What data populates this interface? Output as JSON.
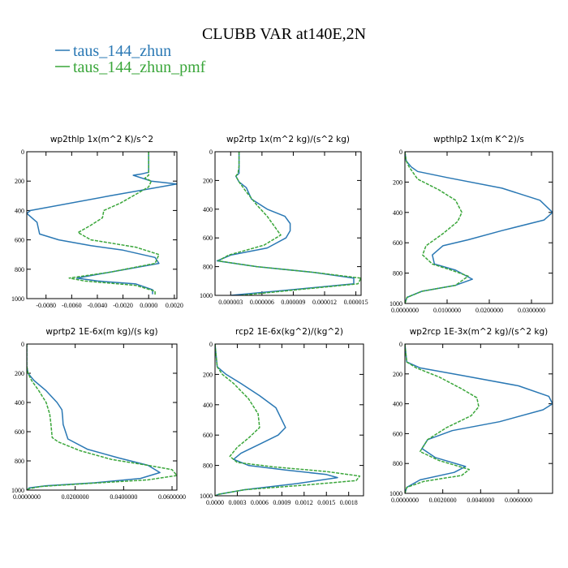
{
  "title": "CLUBB VAR at140E,2N",
  "legend": [
    {
      "label": "taus_144_zhun",
      "color": "#2a78b4"
    },
    {
      "label": "taus_144_zhun_pmf",
      "color": "#3aa63a"
    }
  ],
  "chart_data": [
    {
      "type": "line",
      "title": "wp2thlp   1x(m^2 K)/s^2",
      "ylim": [
        1000,
        0
      ],
      "xlim": [
        -0.0095,
        0.0022
      ],
      "yticks": [
        {
          "v": 0,
          "label": "0"
        },
        {
          "v": 200,
          "label": "200"
        },
        {
          "v": 400,
          "label": "400"
        },
        {
          "v": 600,
          "label": "600"
        },
        {
          "v": 800,
          "label": "800"
        },
        {
          "v": 1000,
          "label": "1000"
        }
      ],
      "xticks": [
        {
          "v": -0.008,
          "label": "-0.0080"
        },
        {
          "v": -0.006,
          "label": "-0.0060"
        },
        {
          "v": -0.004,
          "label": "-0.0040"
        },
        {
          "v": -0.002,
          "label": "-0.0020"
        },
        {
          "v": 0,
          "label": "0.0000"
        },
        {
          "v": 0.002,
          "label": "0.0020"
        }
      ],
      "series": [
        {
          "color": "#2a78b4",
          "dashed": false,
          "x": [
            0,
            0,
            0,
            -0.0005,
            -0.0012,
            0.0002,
            0.0022,
            -0.003,
            -0.0092,
            -0.0095,
            -0.0087,
            -0.0085,
            -0.007,
            -0.0045,
            -0.002,
            0.0005,
            0.0008,
            -0.003,
            -0.0056,
            -0.004,
            -0.001,
            0.0003,
            0.0003
          ],
          "y": [
            0,
            80,
            140,
            150,
            160,
            200,
            220,
            300,
            400,
            420,
            480,
            560,
            600,
            640,
            670,
            720,
            760,
            820,
            860,
            880,
            900,
            940,
            970
          ]
        },
        {
          "color": "#3aa63a",
          "dashed": true,
          "x": [
            0,
            0,
            0,
            0,
            -0.0003,
            0.0002,
            0.0,
            -0.0012,
            -0.0022,
            -0.0035,
            -0.0036,
            -0.0045,
            -0.0055,
            -0.0045,
            -0.001,
            0.0008,
            0.0005,
            -0.003,
            -0.0062,
            -0.005,
            -0.001,
            0.0005,
            0.0005
          ],
          "y": [
            0,
            60,
            120,
            160,
            180,
            200,
            240,
            300,
            350,
            400,
            450,
            500,
            550,
            600,
            650,
            700,
            760,
            820,
            860,
            880,
            910,
            950,
            980
          ]
        }
      ]
    },
    {
      "type": "line",
      "title": "wp2rtp   1x(m^2 kg)/(s^2 kg)",
      "ylim": [
        1000,
        0
      ],
      "xlim": [
        1.5e-06,
        1.55e-05
      ],
      "yticks": [
        {
          "v": 0,
          "label": "0"
        },
        {
          "v": 200,
          "label": "200"
        },
        {
          "v": 400,
          "label": "400"
        },
        {
          "v": 600,
          "label": "600"
        },
        {
          "v": 800,
          "label": "800"
        },
        {
          "v": 1000,
          "label": "1000"
        }
      ],
      "xticks": [
        {
          "v": 3e-06,
          "label": "0.000003"
        },
        {
          "v": 6e-06,
          "label": "0.000006"
        },
        {
          "v": 9e-06,
          "label": "0.000009"
        },
        {
          "v": 1.2e-05,
          "label": "0.000012"
        },
        {
          "v": 1.5e-05,
          "label": "0.000015"
        }
      ],
      "series": [
        {
          "color": "#2a78b4",
          "dashed": false,
          "x": [
            3.8e-06,
            3.8e-06,
            3.8e-06,
            3.5e-06,
            3.8e-06,
            4.5e-06,
            5e-06,
            6.5e-06,
            8.2e-06,
            8.7e-06,
            8.7e-06,
            8.3e-06,
            6.5e-06,
            3e-06,
            1.7e-06,
            5.5e-06,
            1.1e-05,
            1.48e-05,
            1.48e-05,
            9e-06,
            3e-06
          ],
          "y": [
            0,
            100,
            150,
            170,
            210,
            250,
            330,
            400,
            450,
            500,
            550,
            600,
            670,
            720,
            760,
            800,
            840,
            880,
            920,
            960,
            1000
          ]
        },
        {
          "color": "#3aa63a",
          "dashed": true,
          "x": [
            3.8e-06,
            3.8e-06,
            3.7e-06,
            3.5e-06,
            3.8e-06,
            4.5e-06,
            5.5e-06,
            6.5e-06,
            7.5e-06,
            7.8e-06,
            6.2e-06,
            2.8e-06,
            1.8e-06,
            5.5e-06,
            1.1e-05,
            1.55e-05,
            1.52e-05,
            9.5e-06,
            4e-06
          ],
          "y": [
            0,
            100,
            150,
            170,
            210,
            280,
            370,
            450,
            550,
            580,
            650,
            720,
            760,
            800,
            840,
            880,
            920,
            960,
            1000
          ]
        }
      ]
    },
    {
      "type": "line",
      "title": "wpthlp2   1x(m K^2)/s",
      "ylim": [
        1000,
        0
      ],
      "xlim": [
        0,
        0.035
      ],
      "yticks": [
        {
          "v": 0,
          "label": "0"
        },
        {
          "v": 200,
          "label": "200"
        },
        {
          "v": 400,
          "label": "400"
        },
        {
          "v": 600,
          "label": "600"
        },
        {
          "v": 800,
          "label": "800"
        },
        {
          "v": 1000,
          "label": "1000"
        }
      ],
      "xticks": [
        {
          "v": 0,
          "label": "0.0000000"
        },
        {
          "v": 0.01,
          "label": "0.0100000"
        },
        {
          "v": 0.02,
          "label": "0.0200000"
        },
        {
          "v": 0.03,
          "label": "0.0300000"
        }
      ],
      "series": [
        {
          "color": "#2a78b4",
          "dashed": false,
          "x": [
            0,
            0.0003,
            0.0015,
            0.003,
            0.01,
            0.023,
            0.032,
            0.035,
            0.033,
            0.023,
            0.015,
            0.009,
            0.0065,
            0.007,
            0.012,
            0.016,
            0.012,
            0.004,
            0.0005,
            0
          ],
          "y": [
            0,
            60,
            100,
            130,
            170,
            240,
            320,
            400,
            450,
            520,
            580,
            620,
            680,
            740,
            780,
            840,
            880,
            920,
            960,
            1000
          ]
        },
        {
          "color": "#3aa63a",
          "dashed": true,
          "x": [
            0,
            0.0003,
            0.001,
            0.003,
            0.008,
            0.012,
            0.0135,
            0.0125,
            0.009,
            0.005,
            0.0042,
            0.0065,
            0.011,
            0.015,
            0.012,
            0.004,
            0.0005,
            0
          ],
          "y": [
            0,
            60,
            100,
            180,
            250,
            320,
            400,
            460,
            540,
            620,
            680,
            740,
            780,
            820,
            880,
            920,
            960,
            1000
          ]
        }
      ]
    },
    {
      "type": "line",
      "title": "wprtp2   1E-6x(m kg)/(s kg)",
      "ylim": [
        1000,
        0
      ],
      "xlim": [
        0,
        0.062
      ],
      "yticks": [
        {
          "v": 0,
          "label": "0"
        },
        {
          "v": 200,
          "label": "200"
        },
        {
          "v": 400,
          "label": "400"
        },
        {
          "v": 600,
          "label": "600"
        },
        {
          "v": 800,
          "label": "800"
        },
        {
          "v": 1000,
          "label": "1000"
        }
      ],
      "xticks": [
        {
          "v": 0,
          "label": "0.0000000"
        },
        {
          "v": 0.02,
          "label": "0.0200000"
        },
        {
          "v": 0.04,
          "label": "0.0400000"
        },
        {
          "v": 0.06,
          "label": "0.0600000"
        }
      ],
      "series": [
        {
          "color": "#2a78b4",
          "dashed": false,
          "x": [
            0,
            0,
            0.0005,
            0.003,
            0.008,
            0.0125,
            0.0145,
            0.0148,
            0.015,
            0.017,
            0.025,
            0.038,
            0.05,
            0.055,
            0.047,
            0.028,
            0.008,
            0.001,
            0
          ],
          "y": [
            0,
            150,
            200,
            250,
            320,
            400,
            450,
            500,
            550,
            650,
            720,
            780,
            830,
            880,
            920,
            950,
            970,
            985,
            1000
          ]
        },
        {
          "color": "#3aa63a",
          "dashed": true,
          "x": [
            0,
            0,
            0.0005,
            0.002,
            0.005,
            0.008,
            0.0095,
            0.01,
            0.0105,
            0.013,
            0.022,
            0.035,
            0.05,
            0.06,
            0.062,
            0.05,
            0.025,
            0.006,
            0.001,
            0
          ],
          "y": [
            0,
            150,
            200,
            250,
            320,
            400,
            480,
            550,
            640,
            670,
            730,
            790,
            830,
            860,
            900,
            930,
            955,
            975,
            990,
            1000
          ]
        }
      ]
    },
    {
      "type": "line",
      "title": "rcp2   1E-6x(kg^2)/(kg^2)",
      "ylim": [
        1000,
        0
      ],
      "xlim": [
        0,
        0.002
      ],
      "yticks": [
        {
          "v": 0,
          "label": "0"
        },
        {
          "v": 200,
          "label": "200"
        },
        {
          "v": 400,
          "label": "400"
        },
        {
          "v": 600,
          "label": "600"
        },
        {
          "v": 800,
          "label": "800"
        },
        {
          "v": 1000,
          "label": "1000"
        }
      ],
      "xticks": [
        {
          "v": 0,
          "label": "0.0000"
        },
        {
          "v": 0.0003,
          "label": "0.0003"
        },
        {
          "v": 0.0006,
          "label": "0.0006"
        },
        {
          "v": 0.0009,
          "label": "0.0009"
        },
        {
          "v": 0.0012,
          "label": "0.0012"
        },
        {
          "v": 0.0015,
          "label": "0.0015"
        },
        {
          "v": 0.0018,
          "label": "0.0018"
        }
      ],
      "series": [
        {
          "color": "#2a78b4",
          "dashed": false,
          "x": [
            0,
            3e-05,
            0.00015,
            0.00035,
            0.0006,
            0.00082,
            0.00095,
            0.00085,
            0.0006,
            0.00035,
            0.00025,
            0.00045,
            0.00095,
            0.0015,
            0.00165,
            0.0011,
            0.0004,
            5e-05,
            0
          ],
          "y": [
            0,
            150,
            200,
            260,
            340,
            420,
            550,
            600,
            660,
            720,
            760,
            800,
            830,
            860,
            880,
            920,
            960,
            990,
            1000
          ]
        },
        {
          "color": "#3aa63a",
          "dashed": true,
          "x": [
            0,
            3e-05,
            0.0001,
            0.00025,
            0.00045,
            0.00058,
            0.0006,
            0.00045,
            0.0003,
            0.0002,
            0.0003,
            0.0008,
            0.0015,
            0.00195,
            0.0019,
            0.0012,
            0.0004,
            5e-05,
            0
          ],
          "y": [
            0,
            150,
            200,
            260,
            360,
            460,
            550,
            620,
            680,
            740,
            780,
            810,
            840,
            870,
            900,
            930,
            960,
            990,
            1000
          ]
        }
      ]
    },
    {
      "type": "line",
      "title": "wp2rcp   1E-3x(m^2 kg)/(s^2 kg)",
      "ylim": [
        1000,
        0
      ],
      "xlim": [
        0,
        0.0078
      ],
      "yticks": [
        {
          "v": 0,
          "label": "0"
        },
        {
          "v": 200,
          "label": "200"
        },
        {
          "v": 400,
          "label": "400"
        },
        {
          "v": 600,
          "label": "600"
        },
        {
          "v": 800,
          "label": "800"
        },
        {
          "v": 1000,
          "label": "1000"
        }
      ],
      "xticks": [
        {
          "v": 0,
          "label": "0.0000000"
        },
        {
          "v": 0.002,
          "label": "0.0020000"
        },
        {
          "v": 0.004,
          "label": "0.0040000"
        },
        {
          "v": 0.006,
          "label": "0.0060000"
        }
      ],
      "series": [
        {
          "color": "#2a78b4",
          "dashed": false,
          "x": [
            0,
            0.0001,
            0.0008,
            0.003,
            0.006,
            0.0076,
            0.0078,
            0.0073,
            0.005,
            0.0025,
            0.0012,
            0.0009,
            0.0016,
            0.0032,
            0.0026,
            0.0008,
            0.0001,
            0
          ],
          "y": [
            0,
            120,
            160,
            210,
            280,
            350,
            400,
            440,
            520,
            580,
            640,
            700,
            760,
            820,
            860,
            910,
            960,
            1000
          ]
        },
        {
          "color": "#3aa63a",
          "dashed": true,
          "x": [
            0,
            0.0001,
            0.0006,
            0.0018,
            0.003,
            0.0038,
            0.0039,
            0.0035,
            0.0022,
            0.0012,
            0.0008,
            0.0018,
            0.0034,
            0.003,
            0.001,
            0.0001,
            0
          ],
          "y": [
            0,
            120,
            160,
            220,
            300,
            360,
            420,
            480,
            560,
            640,
            720,
            780,
            840,
            880,
            920,
            960,
            1000
          ]
        }
      ]
    }
  ]
}
